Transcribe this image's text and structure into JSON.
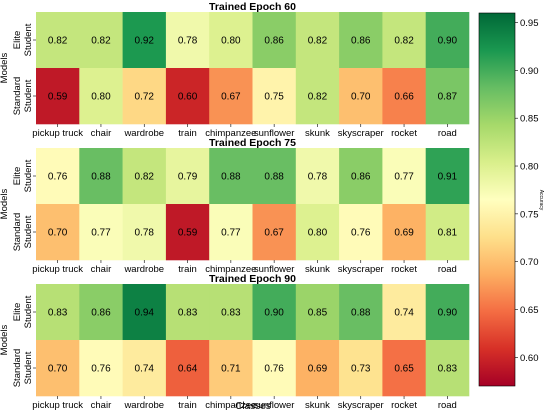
{
  "chart_data": {
    "type": "heatmap",
    "xlabel": "Classes",
    "ylabel": "Models",
    "categories": [
      "pickup truck",
      "chair",
      "wardrobe",
      "train",
      "chimpanzee",
      "sunflower",
      "skunk",
      "skyscraper",
      "rocket",
      "road"
    ],
    "rows": [
      "Elite Student",
      "Standard Student"
    ],
    "panels": [
      {
        "title": "Trained Epoch 60",
        "series": [
          {
            "name": "Elite Student",
            "values": [
              0.82,
              0.82,
              0.92,
              0.78,
              0.8,
              0.86,
              0.82,
              0.86,
              0.82,
              0.9
            ]
          },
          {
            "name": "Standard Student",
            "values": [
              0.59,
              0.8,
              0.72,
              0.6,
              0.67,
              0.75,
              0.82,
              0.7,
              0.66,
              0.87
            ]
          }
        ]
      },
      {
        "title": "Trained Epoch 75",
        "series": [
          {
            "name": "Elite Student",
            "values": [
              0.76,
              0.88,
              0.82,
              0.79,
              0.88,
              0.88,
              0.78,
              0.86,
              0.77,
              0.91
            ]
          },
          {
            "name": "Standard Student",
            "values": [
              0.7,
              0.77,
              0.78,
              0.59,
              0.77,
              0.67,
              0.8,
              0.76,
              0.69,
              0.81
            ]
          }
        ]
      },
      {
        "title": "Trained Epoch 90",
        "series": [
          {
            "name": "Elite Student",
            "values": [
              0.83,
              0.86,
              0.94,
              0.83,
              0.83,
              0.9,
              0.85,
              0.88,
              0.74,
              0.9
            ]
          },
          {
            "name": "Standard Student",
            "values": [
              0.7,
              0.76,
              0.74,
              0.64,
              0.71,
              0.76,
              0.69,
              0.73,
              0.65,
              0.83
            ]
          }
        ]
      }
    ],
    "colorbar": {
      "label": "Accuracy",
      "min": 0.57,
      "max": 0.96,
      "ticks": [
        0.6,
        0.65,
        0.7,
        0.75,
        0.8,
        0.85,
        0.9,
        0.95
      ],
      "colormap": "RdYlGn",
      "colors": [
        "#a50026",
        "#d73027",
        "#f46d43",
        "#fdae61",
        "#fee08b",
        "#ffffbf",
        "#d9ef8b",
        "#a6d96a",
        "#66bd63",
        "#1a9850",
        "#006837"
      ]
    }
  }
}
